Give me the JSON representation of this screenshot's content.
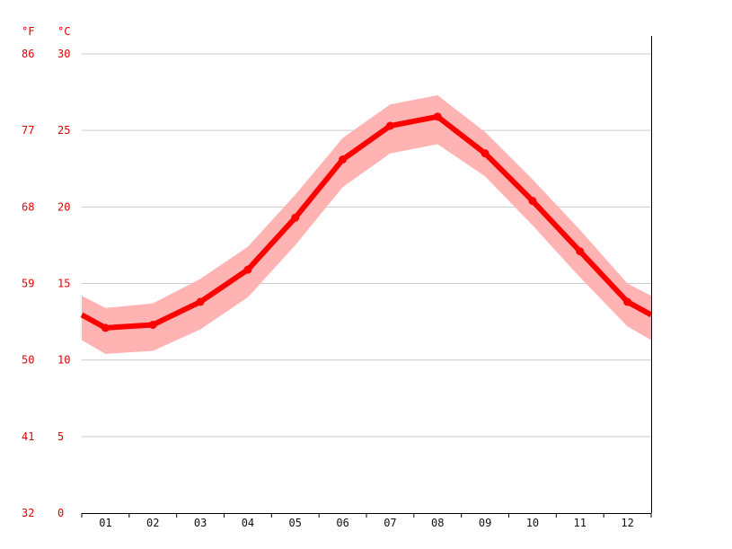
{
  "chart_data": {
    "type": "line",
    "units": {
      "fahrenheit": "°F",
      "celsius": "°C"
    },
    "categories": [
      "01",
      "02",
      "03",
      "04",
      "05",
      "06",
      "07",
      "08",
      "09",
      "10",
      "11",
      "12"
    ],
    "y_ticks_celsius": [
      "0",
      "5",
      "10",
      "15",
      "20",
      "25",
      "30"
    ],
    "y_ticks_fahrenheit": [
      "32",
      "41",
      "50",
      "59",
      "68",
      "77",
      "86"
    ],
    "ylim": [
      0,
      32
    ],
    "grid": true,
    "series": [
      {
        "role": "mean",
        "values": [
          12.1,
          12.3,
          13.8,
          15.9,
          19.3,
          23.1,
          25.3,
          25.9,
          23.5,
          20.4,
          17.1,
          13.8
        ],
        "color": "#ff0000"
      },
      {
        "role": "max",
        "values": [
          13.4,
          13.7,
          15.3,
          17.4,
          20.8,
          24.5,
          26.7,
          27.3,
          24.9,
          21.8,
          18.5,
          15.0
        ],
        "color": "#ffb3b3"
      },
      {
        "role": "min",
        "values": [
          10.4,
          10.6,
          12.0,
          14.1,
          17.5,
          21.3,
          23.5,
          24.1,
          22.0,
          18.8,
          15.4,
          12.2
        ],
        "color": "#ffb3b3"
      }
    ]
  }
}
